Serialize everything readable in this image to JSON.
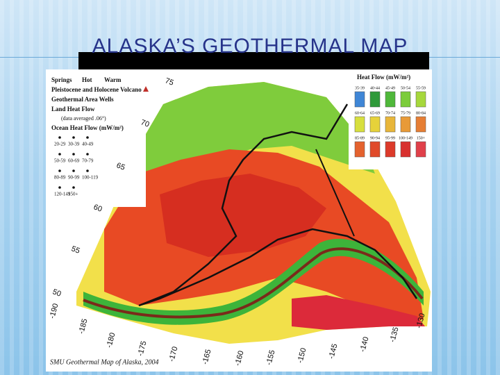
{
  "header": {
    "title": "ALASKA’S GEOTHERMAL MAP"
  },
  "map": {
    "legend": {
      "springs": "Springs",
      "hot": "Hot",
      "warm": "Warm",
      "volcano": "Pleistocene and Holocene Volcano",
      "wells": "Geothermal Area Wells",
      "land_heat_flow": "Land Heat Flow",
      "land_note": "(data averaged .06°)",
      "ocean_heat_flow": "Ocean Heat Flow (mW/m²)",
      "ocean_ranges": [
        "20-29",
        "30-39",
        "40-49",
        "50-59",
        "60-69",
        "70-79",
        "80-89",
        "90-99",
        "100-119",
        "120-149",
        "150+"
      ]
    },
    "heat_flow_legend": {
      "title": "Heat Flow (mW/m²)",
      "items": [
        {
          "label": "35-39",
          "color": "#3f86d6"
        },
        {
          "label": "40-44",
          "color": "#2f9a3a"
        },
        {
          "label": "45-49",
          "color": "#4fb83a"
        },
        {
          "label": "50-54",
          "color": "#7ccc3a"
        },
        {
          "label": "55-59",
          "color": "#a6d83c"
        },
        {
          "label": "60-64",
          "color": "#d7df3e"
        },
        {
          "label": "65-69",
          "color": "#e6d23a"
        },
        {
          "label": "70-74",
          "color": "#e8b63a"
        },
        {
          "label": "75-79",
          "color": "#e89a38"
        },
        {
          "label": "80-84",
          "color": "#e67e34"
        },
        {
          "label": "85-89",
          "color": "#e4622e"
        },
        {
          "label": "90-94",
          "color": "#e04a2a"
        },
        {
          "label": "95-99",
          "color": "#dc3a2a"
        },
        {
          "label": "100-149",
          "color": "#d8302e"
        },
        {
          "label": "150+",
          "color": "#e0404a"
        }
      ]
    },
    "latitude_labels": [
      "75",
      "70",
      "65",
      "60",
      "55",
      "50"
    ],
    "longitude_labels": [
      "-190",
      "-185",
      "-180",
      "-175",
      "-170",
      "-165",
      "-160",
      "-155",
      "-150",
      "-145",
      "-140",
      "-135",
      "-130"
    ],
    "credit": "SMU Geothermal Map of Alaska, 2004"
  }
}
